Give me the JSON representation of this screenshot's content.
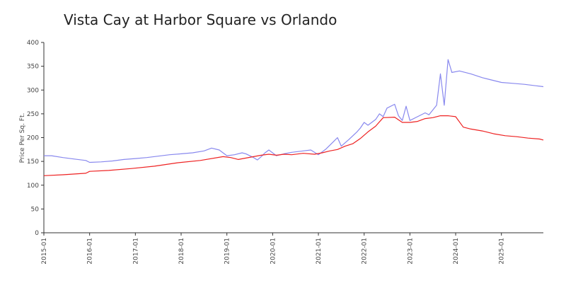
{
  "chart_data": {
    "type": "line",
    "title": "Vista Cay at Harbor Square vs Orlando",
    "xlabel": "",
    "ylabel": "Price Per Sq. Ft.",
    "ylim": [
      0,
      400
    ],
    "y_ticks": [
      "0",
      "50",
      "100",
      "150",
      "200",
      "250",
      "300",
      "350",
      "400"
    ],
    "x_ticks": [
      "2015-01",
      "2016-01",
      "2017-01",
      "2018-01",
      "2019-01",
      "2020-01",
      "2021-01",
      "2022-01",
      "2023-01",
      "2024-01",
      "2025-01"
    ],
    "x_range": [
      "2015-01",
      "2025-12"
    ],
    "grid": false,
    "legend": "none",
    "series": [
      {
        "color": "#8888ee",
        "points": [
          [
            "2015-01",
            162
          ],
          [
            "2015-03",
            162
          ],
          [
            "2015-06",
            158
          ],
          [
            "2015-09",
            155
          ],
          [
            "2015-12",
            152
          ],
          [
            "2016-01",
            148
          ],
          [
            "2016-04",
            149
          ],
          [
            "2016-07",
            151
          ],
          [
            "2016-10",
            154
          ],
          [
            "2017-01",
            156
          ],
          [
            "2017-04",
            158
          ],
          [
            "2017-07",
            161
          ],
          [
            "2017-10",
            164
          ],
          [
            "2018-01",
            166
          ],
          [
            "2018-04",
            168
          ],
          [
            "2018-07",
            172
          ],
          [
            "2018-09",
            178
          ],
          [
            "2018-11",
            174
          ],
          [
            "2019-01",
            162
          ],
          [
            "2019-03",
            164
          ],
          [
            "2019-05",
            168
          ],
          [
            "2019-06",
            166
          ],
          [
            "2019-08",
            158
          ],
          [
            "2019-09",
            153
          ],
          [
            "2019-10",
            160
          ],
          [
            "2019-11",
            168
          ],
          [
            "2019-12",
            174
          ],
          [
            "2020-02",
            162
          ],
          [
            "2020-04",
            166
          ],
          [
            "2020-06",
            169
          ],
          [
            "2020-09",
            172
          ],
          [
            "2020-11",
            174
          ],
          [
            "2021-01",
            164
          ],
          [
            "2021-03",
            176
          ],
          [
            "2021-05",
            192
          ],
          [
            "2021-06",
            200
          ],
          [
            "2021-07",
            182
          ],
          [
            "2021-09",
            196
          ],
          [
            "2021-11",
            211
          ],
          [
            "2021-12",
            220
          ],
          [
            "2022-01",
            232
          ],
          [
            "2022-02",
            226
          ],
          [
            "2022-04",
            238
          ],
          [
            "2022-05",
            250
          ],
          [
            "2022-06",
            244
          ],
          [
            "2022-07",
            262
          ],
          [
            "2022-09",
            270
          ],
          [
            "2022-10",
            246
          ],
          [
            "2022-11",
            236
          ],
          [
            "2022-12",
            266
          ],
          [
            "2023-01",
            236
          ],
          [
            "2023-03",
            244
          ],
          [
            "2023-05",
            252
          ],
          [
            "2023-06",
            248
          ],
          [
            "2023-08",
            268
          ],
          [
            "2023-09",
            334
          ],
          [
            "2023-10",
            268
          ],
          [
            "2023-11",
            364
          ],
          [
            "2023-12",
            337
          ],
          [
            "2024-02",
            340
          ],
          [
            "2024-05",
            334
          ],
          [
            "2024-08",
            326
          ],
          [
            "2024-10",
            322
          ],
          [
            "2025-01",
            316
          ],
          [
            "2025-04",
            314
          ],
          [
            "2025-07",
            312
          ],
          [
            "2025-10",
            309
          ],
          [
            "2025-12",
            307
          ]
        ]
      },
      {
        "color": "#ee2222",
        "points": [
          [
            "2015-01",
            120
          ],
          [
            "2015-06",
            122
          ],
          [
            "2015-12",
            125
          ],
          [
            "2016-01",
            129
          ],
          [
            "2016-06",
            131
          ],
          [
            "2016-12",
            135
          ],
          [
            "2017-06",
            140
          ],
          [
            "2017-12",
            147
          ],
          [
            "2018-06",
            152
          ],
          [
            "2018-12",
            160
          ],
          [
            "2019-02",
            158
          ],
          [
            "2019-04",
            154
          ],
          [
            "2019-06",
            157
          ],
          [
            "2019-08",
            160
          ],
          [
            "2019-10",
            163
          ],
          [
            "2019-12",
            165
          ],
          [
            "2020-02",
            163
          ],
          [
            "2020-04",
            165
          ],
          [
            "2020-06",
            164
          ],
          [
            "2020-09",
            167
          ],
          [
            "2020-12",
            165
          ],
          [
            "2021-02",
            168
          ],
          [
            "2021-04",
            172
          ],
          [
            "2021-06",
            175
          ],
          [
            "2021-08",
            182
          ],
          [
            "2021-10",
            187
          ],
          [
            "2021-12",
            198
          ],
          [
            "2022-02",
            212
          ],
          [
            "2022-04",
            224
          ],
          [
            "2022-06",
            242
          ],
          [
            "2022-09",
            243
          ],
          [
            "2022-11",
            232
          ],
          [
            "2023-01",
            232
          ],
          [
            "2023-03",
            234
          ],
          [
            "2023-05",
            240
          ],
          [
            "2023-07",
            242
          ],
          [
            "2023-09",
            246
          ],
          [
            "2023-11",
            246
          ],
          [
            "2024-01",
            244
          ],
          [
            "2024-03",
            222
          ],
          [
            "2024-05",
            218
          ],
          [
            "2024-08",
            214
          ],
          [
            "2024-11",
            208
          ],
          [
            "2025-02",
            204
          ],
          [
            "2025-05",
            202
          ],
          [
            "2025-08",
            199
          ],
          [
            "2025-11",
            197
          ],
          [
            "2025-12",
            195
          ]
        ]
      }
    ]
  }
}
